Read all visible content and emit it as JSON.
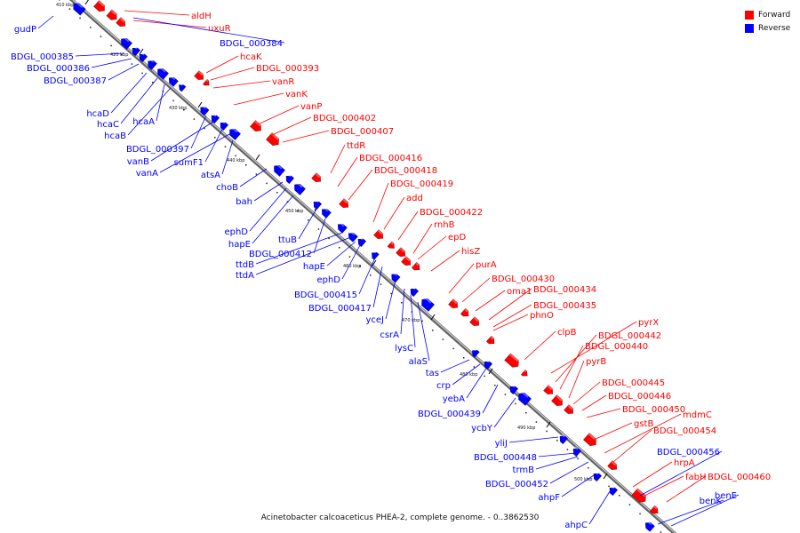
{
  "legend": {
    "forward_label": "Forward",
    "reverse_label": "Reverse",
    "forward_color": "#ff0000",
    "reverse_color": "#0000ff"
  },
  "caption": "Acinetobacter calcoaceticus PHEA-2, complete genome. - 0..3862530",
  "ticks": [
    "410 kbp",
    "420 kbp",
    "430 kbp",
    "440 kbp",
    "450 kbp",
    "460 kbp",
    "470 kbp",
    "480 kbp",
    "490 kbp",
    "500 kbp"
  ],
  "forward_genes": [
    "aldH",
    "uxuR",
    "hcaK",
    "BDGL_000393",
    "vanR",
    "vanK",
    "vanP",
    "BDGL_000402",
    "BDGL_000407",
    "ttdR",
    "BDGL_000416",
    "BDGL_000418",
    "BDGL_000419",
    "add",
    "BDGL_000422",
    "rnhB",
    "epD",
    "hisZ",
    "purA",
    "BDGL_000430",
    "oma1",
    "BDGL_000434",
    "BDGL_000435",
    "phnO",
    "clpB",
    "pyrX",
    "BDGL_000442",
    "BDGL_000440",
    "pyrB",
    "BDGL_000445",
    "BDGL_000446",
    "BDGL_000450",
    "mdmC",
    "gstB",
    "BDGL_000454",
    "hrpA",
    "fabH",
    "BDGL_000460"
  ],
  "reverse_genes": [
    "gudP",
    "BDGL_000384",
    "BDGL_000385",
    "BDGL_000386",
    "BDGL_000387",
    "hcaD",
    "hcaC",
    "hcaA",
    "hcaB",
    "BDGL_000397",
    "vanB",
    "sumF1",
    "vanA",
    "atsA",
    "choB",
    "bah",
    "ephD",
    "hapE",
    "ttuB",
    "BDGL_000412",
    "ttdB",
    "ttdA",
    "hapE",
    "ephD",
    "BDGL_000415",
    "BDGL_000417",
    "yceJ",
    "csrA",
    "lysC",
    "alaS",
    "tas",
    "crp",
    "yebA",
    "BDGL_000439",
    "ycbY",
    "yliJ",
    "BDGL_000448",
    "trmB",
    "BDGL_000452",
    "ahpF",
    "ahpC",
    "BDGL_000456",
    "benK",
    "benE"
  ]
}
